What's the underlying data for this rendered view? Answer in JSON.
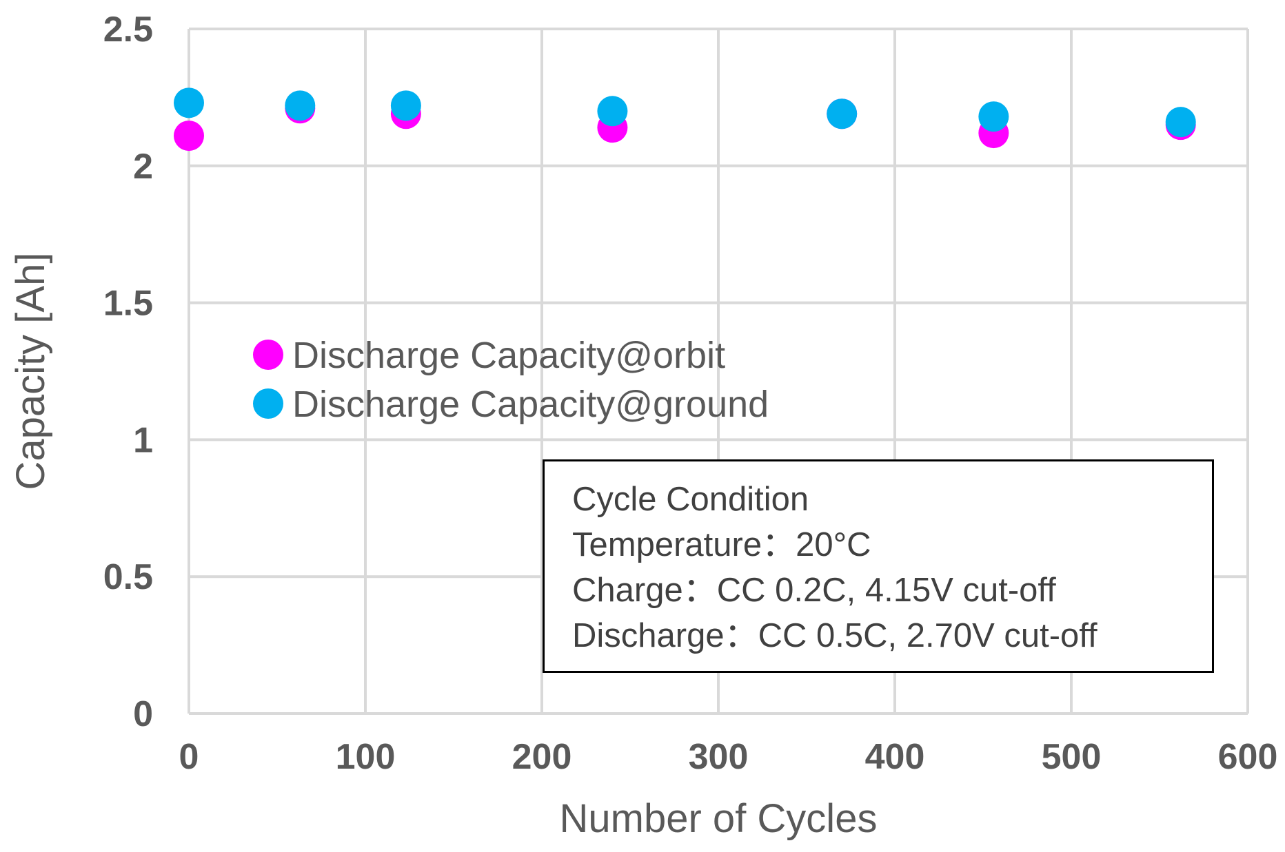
{
  "chart_data": {
    "type": "scatter",
    "title": "",
    "xlabel": "Number of Cycles",
    "ylabel": "Capacity [Ah]",
    "xlim": [
      0,
      600
    ],
    "ylim": [
      0,
      2.5
    ],
    "x_ticks": [
      "0",
      "100",
      "200",
      "300",
      "400",
      "500",
      "600"
    ],
    "y_ticks": [
      "0",
      "0.5",
      "1",
      "1.5",
      "2",
      "2.5"
    ],
    "grid": true,
    "legend_position": "upper-left inside plot",
    "series": [
      {
        "name": "Discharge Capacity@orbit",
        "color": "#FF00FF",
        "x": [
          0,
          63,
          123,
          240,
          370,
          456,
          562
        ],
        "y": [
          2.11,
          2.21,
          2.19,
          2.14,
          2.19,
          2.12,
          2.15
        ]
      },
      {
        "name": "Discharge Capacity@ground",
        "color": "#00B0F0",
        "x": [
          0,
          63,
          123,
          240,
          370,
          456,
          562
        ],
        "y": [
          2.23,
          2.22,
          2.22,
          2.2,
          2.19,
          2.18,
          2.16
        ]
      }
    ],
    "annotation": {
      "lines": [
        "Cycle Condition",
        "Temperature：20°C",
        "Charge：CC 0.2C, 4.15V cut-off",
        "Discharge：CC 0.5C, 2.70V cut-off"
      ]
    }
  }
}
